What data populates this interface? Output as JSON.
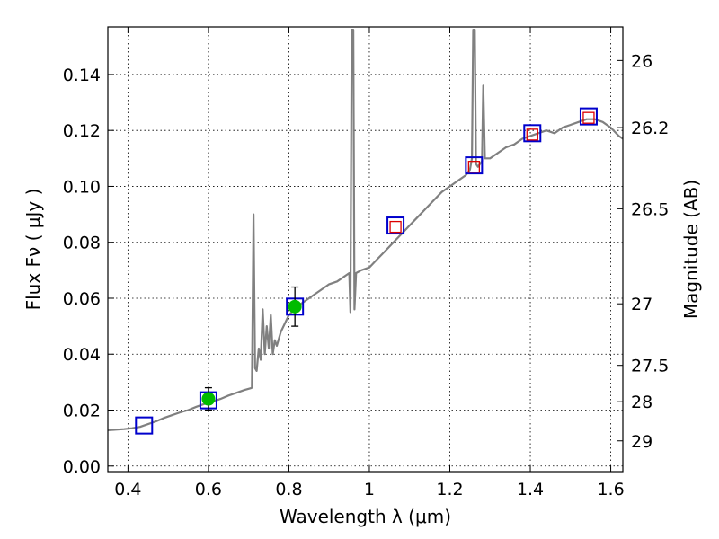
{
  "chart_data": {
    "type": "line",
    "xlabel": "Wavelength  λ (μm)",
    "ylabel": "Flux  Fν  ( μJy )",
    "y2label": "Magnitude (AB)",
    "xlim": [
      0.35,
      1.63
    ],
    "ylim": [
      -0.002,
      0.157
    ],
    "x_ticks": [
      0.4,
      0.6,
      0.8,
      1.0,
      1.2,
      1.4,
      1.6
    ],
    "x_tick_labels": [
      "0.4",
      "0.6",
      "0.8",
      "1",
      "1.2",
      "1.4",
      "1.6"
    ],
    "y_ticks": [
      0.0,
      0.02,
      0.04,
      0.06,
      0.08,
      0.1,
      0.12,
      0.14
    ],
    "y_tick_labels": [
      "0.00",
      "0.02",
      "0.04",
      "0.06",
      "0.08",
      "0.10",
      "0.12",
      "0.14"
    ],
    "y2_ticks": [
      {
        "label": "26",
        "flux": 0.145
      },
      {
        "label": "26.2",
        "flux": 0.121
      },
      {
        "label": "26.5",
        "flux": 0.092
      },
      {
        "label": "27",
        "flux": 0.058
      },
      {
        "label": "27.5",
        "flux": 0.036
      },
      {
        "label": "28",
        "flux": 0.023
      },
      {
        "label": "29",
        "flux": 0.009
      }
    ],
    "grid": true,
    "colors": {
      "spectrum": "#808080",
      "box_outline": "#0000cc",
      "model_box": "#dd0000",
      "detection": "#00bb00",
      "errorbar": "#000000"
    },
    "series": [
      {
        "name": "spectrum",
        "style": "line",
        "points": [
          [
            0.35,
            0.0128
          ],
          [
            0.37,
            0.013
          ],
          [
            0.39,
            0.0132
          ],
          [
            0.41,
            0.0135
          ],
          [
            0.43,
            0.014
          ],
          [
            0.45,
            0.015
          ],
          [
            0.47,
            0.016
          ],
          [
            0.49,
            0.0172
          ],
          [
            0.51,
            0.0182
          ],
          [
            0.53,
            0.0192
          ],
          [
            0.55,
            0.02
          ],
          [
            0.57,
            0.0212
          ],
          [
            0.59,
            0.0222
          ],
          [
            0.61,
            0.023
          ],
          [
            0.63,
            0.024
          ],
          [
            0.65,
            0.0252
          ],
          [
            0.67,
            0.0262
          ],
          [
            0.69,
            0.0272
          ],
          [
            0.705,
            0.0278
          ],
          [
            0.708,
            0.028
          ],
          [
            0.712,
            0.09
          ],
          [
            0.716,
            0.035
          ],
          [
            0.72,
            0.034
          ],
          [
            0.725,
            0.042
          ],
          [
            0.73,
            0.038
          ],
          [
            0.735,
            0.056
          ],
          [
            0.74,
            0.04
          ],
          [
            0.745,
            0.05
          ],
          [
            0.75,
            0.042
          ],
          [
            0.755,
            0.054
          ],
          [
            0.76,
            0.04
          ],
          [
            0.765,
            0.045
          ],
          [
            0.77,
            0.043
          ],
          [
            0.78,
            0.048
          ],
          [
            0.79,
            0.051
          ],
          [
            0.8,
            0.054
          ],
          [
            0.82,
            0.057
          ],
          [
            0.84,
            0.059
          ],
          [
            0.86,
            0.061
          ],
          [
            0.88,
            0.063
          ],
          [
            0.9,
            0.065
          ],
          [
            0.92,
            0.066
          ],
          [
            0.94,
            0.068
          ],
          [
            0.95,
            0.069
          ],
          [
            0.953,
            0.055
          ],
          [
            0.956,
            0.156
          ],
          [
            0.96,
            0.156
          ],
          [
            0.963,
            0.056
          ],
          [
            0.967,
            0.069
          ],
          [
            0.98,
            0.07
          ],
          [
            1.0,
            0.071
          ],
          [
            1.02,
            0.074
          ],
          [
            1.04,
            0.077
          ],
          [
            1.06,
            0.08
          ],
          [
            1.08,
            0.083
          ],
          [
            1.1,
            0.086
          ],
          [
            1.12,
            0.089
          ],
          [
            1.14,
            0.092
          ],
          [
            1.16,
            0.095
          ],
          [
            1.18,
            0.098
          ],
          [
            1.2,
            0.1
          ],
          [
            1.22,
            0.102
          ],
          [
            1.24,
            0.104
          ],
          [
            1.25,
            0.106
          ],
          [
            1.255,
            0.11
          ],
          [
            1.258,
            0.156
          ],
          [
            1.262,
            0.156
          ],
          [
            1.265,
            0.108
          ],
          [
            1.27,
            0.107
          ],
          [
            1.28,
            0.109
          ],
          [
            1.283,
            0.136
          ],
          [
            1.287,
            0.11
          ],
          [
            1.3,
            0.11
          ],
          [
            1.32,
            0.112
          ],
          [
            1.34,
            0.114
          ],
          [
            1.36,
            0.115
          ],
          [
            1.38,
            0.117
          ],
          [
            1.4,
            0.118
          ],
          [
            1.42,
            0.119
          ],
          [
            1.44,
            0.12
          ],
          [
            1.46,
            0.119
          ],
          [
            1.48,
            0.121
          ],
          [
            1.5,
            0.122
          ],
          [
            1.52,
            0.123
          ],
          [
            1.54,
            0.124
          ],
          [
            1.56,
            0.124
          ],
          [
            1.58,
            0.123
          ],
          [
            1.6,
            0.121
          ],
          [
            1.62,
            0.118
          ],
          [
            1.63,
            0.117
          ]
        ]
      },
      {
        "name": "filter boxes",
        "style": "square",
        "x": [
          0.44,
          0.6,
          0.815,
          1.065,
          1.26,
          1.405,
          1.545
        ],
        "y": [
          0.0145,
          0.0235,
          0.057,
          0.086,
          0.1075,
          0.119,
          0.125
        ]
      },
      {
        "name": "model photometry",
        "style": "square",
        "x": [
          1.065,
          1.26,
          1.405,
          1.545
        ],
        "y": [
          0.0855,
          0.107,
          0.1185,
          0.1245
        ]
      },
      {
        "name": "detections",
        "style": "circle",
        "x": [
          0.6,
          0.815
        ],
        "y": [
          0.024,
          0.057
        ],
        "yerr": [
          0.004,
          0.007
        ]
      }
    ]
  }
}
